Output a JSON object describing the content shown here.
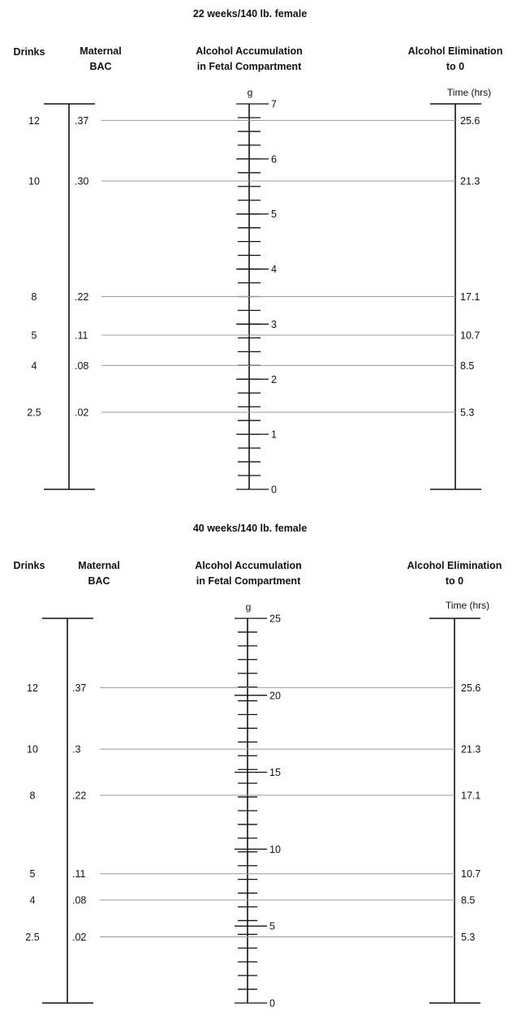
{
  "panels": [
    {
      "title": "22 weeks/140 lb. female",
      "headers": {
        "drinks": "Drinks",
        "bac_line1": "Maternal",
        "bac_line2": "BAC",
        "accum_line1": "Alcohol Accumulation",
        "accum_line2": "in Fetal Compartment",
        "elim_line1": "Alcohol Elimination",
        "elim_line2": "to 0"
      },
      "g_unit": "g",
      "time_unit": "Time (hrs)",
      "g_scale": {
        "min": 0,
        "max": 7,
        "labels": [
          "0",
          "1",
          "2",
          "3",
          "4",
          "5",
          "6",
          "7"
        ],
        "minor_per_unit": 4
      },
      "rows": [
        {
          "drinks": "12",
          "bac": ".37",
          "hours": "25.6",
          "g": 6.7
        },
        {
          "drinks": "10",
          "bac": ".30",
          "hours": "21.3",
          "g": 5.6
        },
        {
          "drinks": "8",
          "bac": ".22",
          "hours": "17.1",
          "g": 3.5
        },
        {
          "drinks": "5",
          "bac": ".11",
          "hours": "10.7",
          "g": 2.8
        },
        {
          "drinks": "4",
          "bac": ".08",
          "hours": "8.5",
          "g": 2.25
        },
        {
          "drinks": "2.5",
          "bac": ".02",
          "hours": "5.3",
          "g": 1.4
        }
      ]
    },
    {
      "title": "40 weeks/140 lb. female",
      "headers": {
        "drinks": "Drinks",
        "bac_line1": "Maternal",
        "bac_line2": "BAC",
        "accum_line1": "Alcohol Accumulation",
        "accum_line2": "in Fetal Compartment",
        "elim_line1": "Alcohol Elimination",
        "elim_line2": "to 0"
      },
      "g_unit": "g",
      "time_unit": "Time (hrs)",
      "g_scale": {
        "min": 0,
        "max": 25,
        "labels": [
          "0",
          "5",
          "10",
          "15",
          "20",
          "25"
        ],
        "minor_per_unit": 0.6
      },
      "rows": [
        {
          "drinks": "12",
          "bac": ".37",
          "hours": "25.6",
          "g": 20.5
        },
        {
          "drinks": "10",
          "bac": ".3",
          "hours": "21.3",
          "g": 16.5
        },
        {
          "drinks": "8",
          "bac": ".22",
          "hours": "17.1",
          "g": 13.5
        },
        {
          "drinks": "5",
          "bac": ".11",
          "hours": "10.7",
          "g": 8.4
        },
        {
          "drinks": "4",
          "bac": ".08",
          "hours": "8.5",
          "g": 6.7
        },
        {
          "drinks": "2.5",
          "bac": ".02",
          "hours": "5.3",
          "g": 4.3
        }
      ]
    }
  ]
}
